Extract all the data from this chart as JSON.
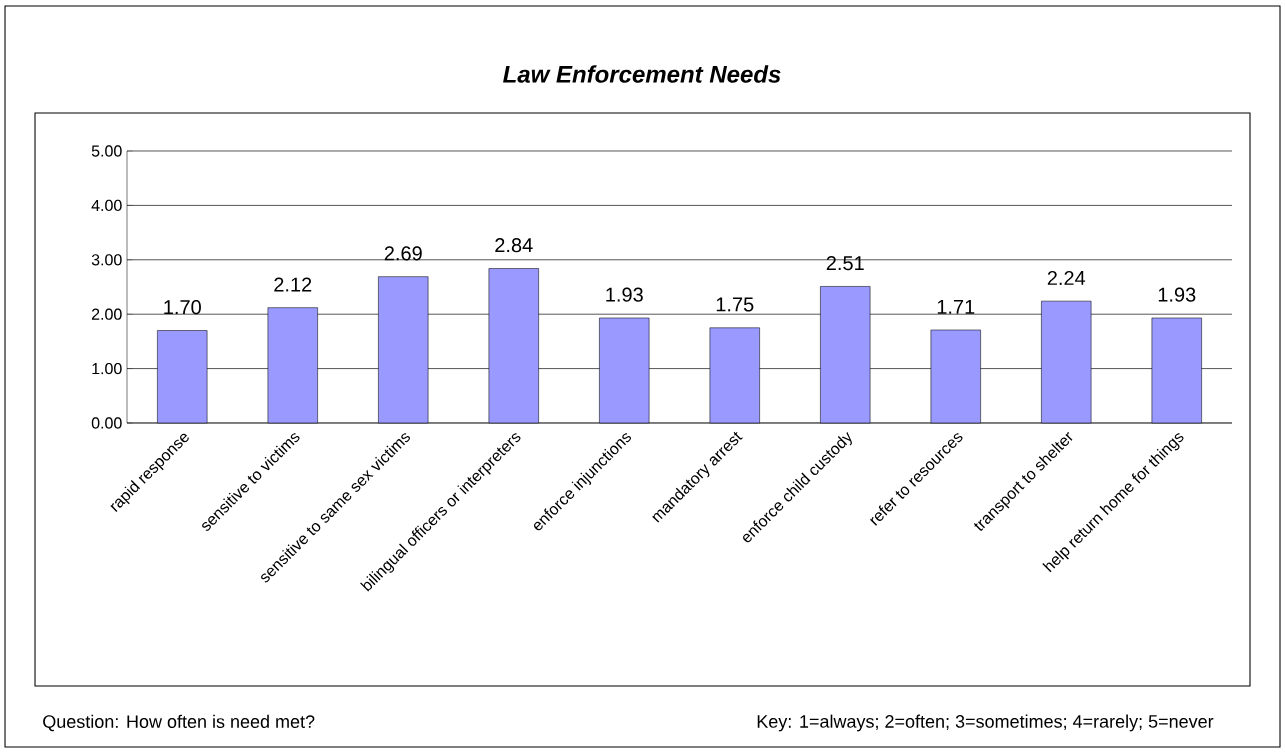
{
  "chart_data": {
    "type": "bar",
    "title": "Law Enforcement Needs",
    "categories": [
      "rapid response",
      "sensitive to victims",
      "sensitive to same sex victims",
      "bilingual officers or interpreters",
      "enforce injunctions",
      "mandatory arrest",
      "enforce child custody",
      "refer to resources",
      "transport to shelter",
      "help return home for things"
    ],
    "values": [
      1.7,
      2.12,
      2.69,
      2.84,
      1.93,
      1.75,
      2.51,
      1.71,
      2.24,
      1.93
    ],
    "value_labels": [
      "1.70",
      "2.12",
      "2.69",
      "2.84",
      "1.93",
      "1.75",
      "2.51",
      "1.71",
      "2.24",
      "1.93"
    ],
    "color": "#9999ff",
    "ylim": [
      0,
      5
    ],
    "yticks": [
      {
        "value": 0,
        "label": "0.00"
      },
      {
        "value": 1,
        "label": "1.00"
      },
      {
        "value": 2,
        "label": "2.00"
      },
      {
        "value": 3,
        "label": "3.00"
      },
      {
        "value": 4,
        "label": "4.00"
      },
      {
        "value": 5,
        "label": "5.00"
      }
    ],
    "grid": "y",
    "annotations": [
      "Question:  How often is need met?",
      "Key:  1=always; 2=often; 3=sometimes; 4=rarely; 5=never"
    ]
  }
}
